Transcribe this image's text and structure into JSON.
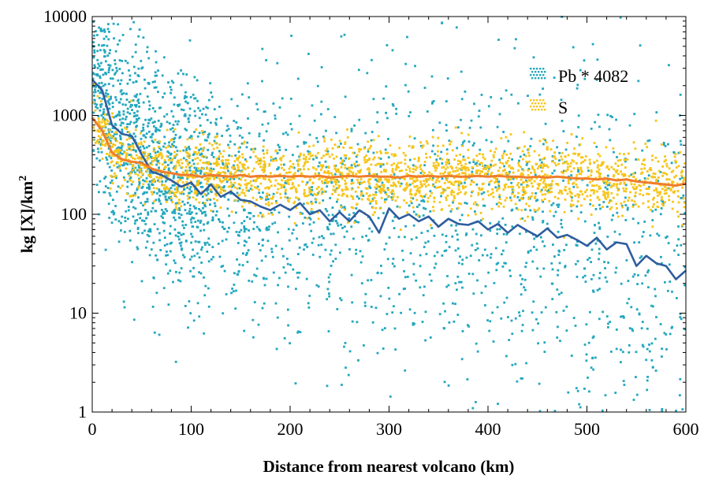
{
  "chart_data": {
    "type": "scatter",
    "xlabel": "Distance from nearest volcano (km)",
    "ylabel": "kg [X]/km",
    "ylabel_superscript": "2",
    "xlim": [
      0,
      600
    ],
    "ylim": [
      1,
      10000
    ],
    "yscale": "log",
    "grid": false,
    "legend_position": "top-right",
    "x_ticks": [
      0,
      100,
      200,
      300,
      400,
      500,
      600
    ],
    "x_tick_labels": [
      "0",
      "100",
      "200",
      "300",
      "400",
      "500",
      "600"
    ],
    "y_ticks": [
      1,
      10,
      100,
      1000,
      10000
    ],
    "y_tick_labels": [
      "1",
      "10",
      "100",
      "1000",
      "10000"
    ],
    "series": [
      {
        "name": "Pb * 4082",
        "kind": "scatter",
        "color": "#22a7be",
        "n_points": 2600,
        "trend": {
          "color": "#2f5d9e",
          "x": [
            0,
            10,
            20,
            30,
            40,
            50,
            60,
            70,
            80,
            90,
            100,
            110,
            120,
            130,
            140,
            150,
            160,
            170,
            180,
            190,
            200,
            210,
            220,
            230,
            240,
            250,
            260,
            270,
            280,
            290,
            300,
            310,
            320,
            330,
            340,
            350,
            360,
            370,
            380,
            390,
            400,
            410,
            420,
            430,
            440,
            450,
            460,
            470,
            480,
            490,
            500,
            510,
            520,
            530,
            540,
            550,
            560,
            570,
            580,
            590,
            600
          ],
          "y": [
            2300,
            1800,
            800,
            650,
            620,
            400,
            270,
            250,
            220,
            190,
            210,
            160,
            200,
            150,
            170,
            140,
            135,
            120,
            110,
            125,
            110,
            130,
            100,
            110,
            85,
            105,
            85,
            110,
            95,
            65,
            115,
            90,
            100,
            85,
            95,
            75,
            90,
            80,
            78,
            85,
            70,
            80,
            65,
            78,
            68,
            60,
            72,
            58,
            62,
            55,
            48,
            58,
            44,
            52,
            50,
            30,
            38,
            32,
            30,
            22,
            27
          ]
        }
      },
      {
        "name": "S",
        "kind": "scatter",
        "color": "#f7c51a",
        "n_points": 2100,
        "trend": {
          "color": "#ef7d2d",
          "x": [
            0,
            10,
            20,
            30,
            40,
            50,
            60,
            70,
            80,
            90,
            100,
            110,
            120,
            130,
            140,
            150,
            160,
            170,
            180,
            190,
            200,
            210,
            220,
            230,
            240,
            250,
            260,
            270,
            280,
            290,
            300,
            310,
            320,
            330,
            340,
            350,
            360,
            370,
            380,
            390,
            400,
            410,
            420,
            430,
            440,
            450,
            460,
            470,
            480,
            490,
            500,
            510,
            520,
            530,
            540,
            550,
            560,
            570,
            580,
            590,
            600
          ],
          "y": [
            950,
            700,
            420,
            360,
            340,
            330,
            290,
            270,
            260,
            250,
            250,
            240,
            250,
            245,
            240,
            250,
            240,
            245,
            240,
            245,
            240,
            245,
            240,
            245,
            235,
            240,
            245,
            240,
            245,
            240,
            240,
            235,
            245,
            240,
            245,
            240,
            245,
            240,
            240,
            245,
            240,
            245,
            240,
            240,
            235,
            240,
            235,
            240,
            235,
            230,
            230,
            225,
            230,
            220,
            225,
            215,
            210,
            205,
            200,
            195,
            205
          ]
        }
      }
    ]
  }
}
